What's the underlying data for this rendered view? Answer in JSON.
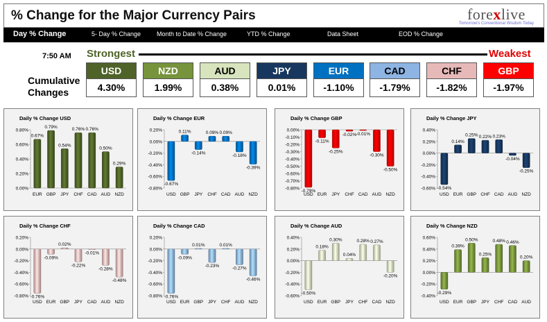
{
  "header": {
    "title": "% Change for the Major Currency Pairs",
    "logo_main_a": "fore",
    "logo_main_x": "x",
    "logo_main_b": "live",
    "logo_sub": "Tomorrow's Conventional Wisdom Today"
  },
  "nav": {
    "tabs": [
      "Day % Change",
      "5- Day % Change",
      "Month to Date % Change",
      "YTD % Change",
      "Data Sheet",
      "EOD % Change"
    ]
  },
  "summary": {
    "time": "7:50 AM",
    "strongest": "Strongest",
    "weakest": "Weakest",
    "cumulative_label_1": "Cumulative",
    "cumulative_label_2": "Changes",
    "currencies": [
      {
        "code": "USD",
        "value": "4.30%",
        "bg": "#4f6228",
        "fg": "#ffffff"
      },
      {
        "code": "NZD",
        "value": "1.99%",
        "bg": "#77933c",
        "fg": "#ffffff"
      },
      {
        "code": "AUD",
        "value": "0.38%",
        "bg": "#d7e4bd",
        "fg": "#000000"
      },
      {
        "code": "JPY",
        "value": "0.01%",
        "bg": "#17375e",
        "fg": "#ffffff"
      },
      {
        "code": "EUR",
        "value": "-1.10%",
        "bg": "#0070c0",
        "fg": "#ffffff"
      },
      {
        "code": "CAD",
        "value": "-1.79%",
        "bg": "#8db4e2",
        "fg": "#000000"
      },
      {
        "code": "CHF",
        "value": "-1.82%",
        "bg": "#e6b9b8",
        "fg": "#000000"
      },
      {
        "code": "GBP",
        "value": "-1.97%",
        "bg": "#ff0000",
        "fg": "#ffffff"
      }
    ]
  },
  "chart_data": [
    {
      "type": "bar",
      "title": "Daily % Change USD",
      "categories": [
        "EUR",
        "GBP",
        "JPY",
        "CHF",
        "CAD",
        "AUD",
        "NZD"
      ],
      "values": [
        0.67,
        0.79,
        0.54,
        0.76,
        0.76,
        0.5,
        0.29
      ],
      "labels": [
        "0.67%",
        "0.79%",
        "0.54%",
        "0.76%",
        "0.76%",
        "0.50%",
        "0.29%"
      ],
      "yticks": [
        "0.80%",
        "0.60%",
        "0.40%",
        "0.20%",
        "0.00%"
      ],
      "ylim": [
        0,
        0.8
      ],
      "color": "#4f6228"
    },
    {
      "type": "bar",
      "title": "Daily % Change EUR",
      "categories": [
        "USD",
        "GBP",
        "JPY",
        "CHF",
        "CAD",
        "AUD",
        "NZD"
      ],
      "values": [
        -0.67,
        0.11,
        -0.14,
        0.09,
        0.09,
        -0.18,
        -0.39
      ],
      "labels": [
        "-0.67%",
        "0.11%",
        "-0.14%",
        "0.09%",
        "0.09%",
        "-0.18%",
        "-0.39%"
      ],
      "yticks": [
        "0.20%",
        "0.00%",
        "-0.20%",
        "-0.40%",
        "-0.60%",
        "-0.80%"
      ],
      "ylim": [
        -0.8,
        0.2
      ],
      "color": "#0070c0"
    },
    {
      "type": "bar",
      "title": "Daily % Change GBP",
      "categories": [
        "USD",
        "EUR",
        "JPY",
        "CHF",
        "CAD",
        "AUD",
        "NZD"
      ],
      "values": [
        -0.79,
        -0.11,
        -0.25,
        -0.02,
        -0.01,
        -0.3,
        -0.5
      ],
      "labels": [
        "-0.79%",
        "-0.11%",
        "-0.25%",
        "-0.02%",
        "-0.01%",
        "-0.30%",
        "-0.50%"
      ],
      "yticks": [
        "0.00%",
        "-0.10%",
        "-0.20%",
        "-0.30%",
        "-0.40%",
        "-0.50%",
        "-0.60%",
        "-0.70%",
        "-0.80%"
      ],
      "ylim": [
        -0.8,
        0
      ],
      "color": "#ff0000"
    },
    {
      "type": "bar",
      "title": "Daily % Change JPY",
      "categories": [
        "USD",
        "EUR",
        "GBP",
        "CHF",
        "CAD",
        "AUD",
        "NZD"
      ],
      "values": [
        -0.54,
        0.14,
        0.25,
        0.22,
        0.23,
        -0.04,
        -0.25
      ],
      "labels": [
        "-0.54%",
        "0.14%",
        "0.25%",
        "0.22%",
        "0.23%",
        "-0.04%",
        "-0.25%"
      ],
      "yticks": [
        "0.40%",
        "0.20%",
        "0.00%",
        "-0.20%",
        "-0.40%",
        "-0.60%"
      ],
      "ylim": [
        -0.6,
        0.4
      ],
      "color": "#17375e"
    },
    {
      "type": "bar",
      "title": "Daily % Change CHF",
      "categories": [
        "USD",
        "EUR",
        "GBP",
        "JPY",
        "CAD",
        "AUD",
        "NZD"
      ],
      "values": [
        -0.76,
        -0.09,
        0.02,
        -0.22,
        -0.01,
        -0.28,
        -0.48
      ],
      "labels": [
        "-0.76%",
        "-0.09%",
        "0.02%",
        "-0.22%",
        "-0.01%",
        "-0.28%",
        "-0.48%"
      ],
      "yticks": [
        "0.20%",
        "0.00%",
        "-0.20%",
        "-0.40%",
        "-0.60%",
        "-0.80%"
      ],
      "ylim": [
        -0.8,
        0.2
      ],
      "color": "#e6b9b8"
    },
    {
      "type": "bar",
      "title": "Daily % Change CAD",
      "categories": [
        "USD",
        "EUR",
        "GBP",
        "JPY",
        "CHF",
        "AUD",
        "NZD"
      ],
      "values": [
        -0.76,
        -0.09,
        0.01,
        -0.23,
        0.01,
        -0.27,
        -0.46
      ],
      "labels": [
        "-0.76%",
        "-0.09%",
        "0.01%",
        "-0.23%",
        "0.01%",
        "-0.27%",
        "-0.46%"
      ],
      "yticks": [
        "0.20%",
        "0.00%",
        "-0.20%",
        "-0.40%",
        "-0.60%",
        "-0.80%"
      ],
      "ylim": [
        -0.8,
        0.2
      ],
      "color": "#8db4e2"
    },
    {
      "type": "bar",
      "title": "Daily % Change AUD",
      "categories": [
        "USD",
        "EUR",
        "GBP",
        "JPY",
        "CHF",
        "CAD",
        "NZD"
      ],
      "values": [
        -0.5,
        0.18,
        0.3,
        0.04,
        0.28,
        0.27,
        -0.2
      ],
      "labels": [
        "-0.50%",
        "0.18%",
        "0.30%",
        "0.04%",
        "0.28%",
        "0.27%",
        "-0.20%"
      ],
      "yticks": [
        "0.40%",
        "0.20%",
        "0.00%",
        "-0.20%",
        "-0.40%",
        "-0.60%"
      ],
      "ylim": [
        -0.6,
        0.4
      ],
      "color": "#d7e4bd"
    },
    {
      "type": "bar",
      "title": "Daily % Change NZD",
      "categories": [
        "USD",
        "EUR",
        "GBP",
        "JPY",
        "CHF",
        "CAD",
        "AUD"
      ],
      "values": [
        -0.29,
        0.39,
        0.5,
        0.25,
        0.48,
        0.46,
        0.2
      ],
      "labels": [
        "-0.29%",
        "0.39%",
        "0.50%",
        "0.25%",
        "0.48%",
        "0.46%",
        "0.20%"
      ],
      "yticks": [
        "0.60%",
        "0.40%",
        "0.20%",
        "0.00%",
        "-0.20%",
        "-0.40%"
      ],
      "ylim": [
        -0.4,
        0.6
      ],
      "color": "#77933c"
    }
  ]
}
